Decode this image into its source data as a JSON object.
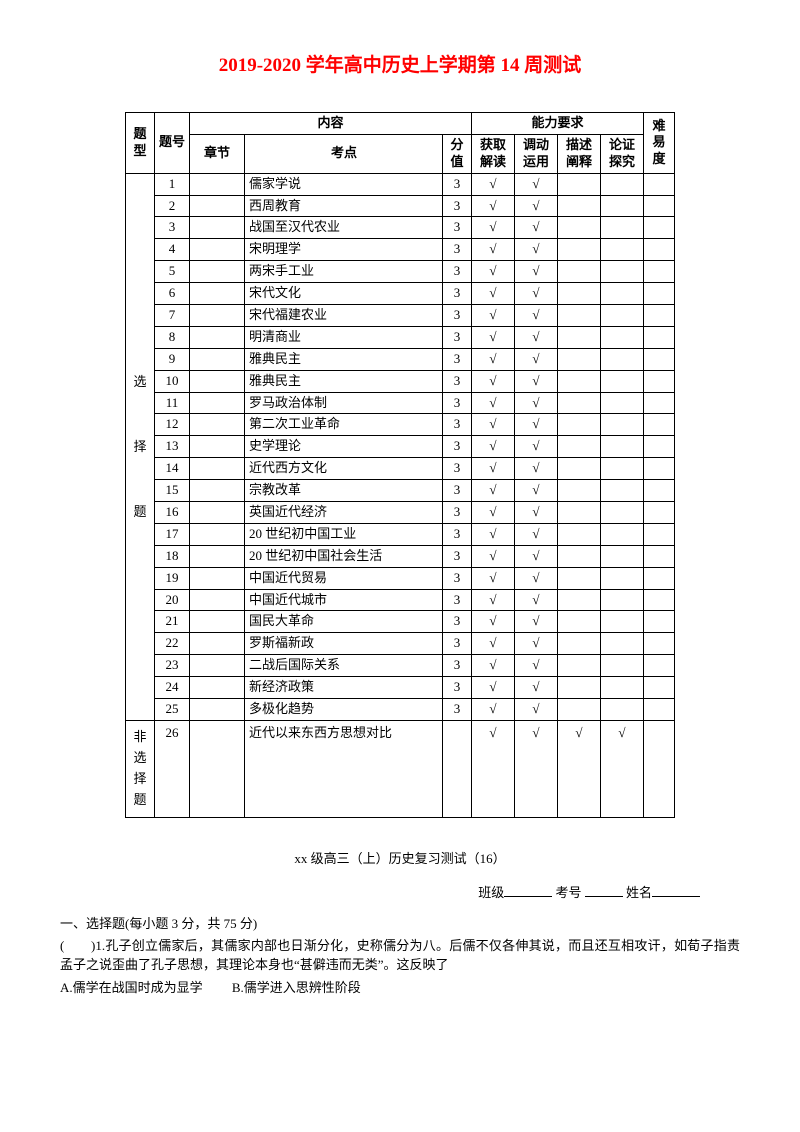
{
  "title": "2019-2020 学年高中历史上学期第 14 周测试",
  "header": {
    "type": "题型",
    "num": "题号",
    "content": "内容",
    "ability": "能力要求",
    "diff": "难易度",
    "chapter": "章节",
    "topic": "考点",
    "score": "分值",
    "a1": "获取解读",
    "a2": "调动运用",
    "a3": "描述阐释",
    "a4": "论证探究"
  },
  "type_mc": "选择题",
  "type_nonmc": "非选择题",
  "check": "√",
  "rows": [
    {
      "n": "1",
      "topic": "儒家学说",
      "s": "3",
      "c": [
        1,
        1,
        0,
        0
      ]
    },
    {
      "n": "2",
      "topic": "西周教育",
      "s": "3",
      "c": [
        1,
        1,
        0,
        0
      ]
    },
    {
      "n": "3",
      "topic": "战国至汉代农业",
      "s": "3",
      "c": [
        1,
        1,
        0,
        0
      ]
    },
    {
      "n": "4",
      "topic": "宋明理学",
      "s": "3",
      "c": [
        1,
        1,
        0,
        0
      ]
    },
    {
      "n": "5",
      "topic": "两宋手工业",
      "s": "3",
      "c": [
        1,
        1,
        0,
        0
      ]
    },
    {
      "n": "6",
      "topic": "宋代文化",
      "s": "3",
      "c": [
        1,
        1,
        0,
        0
      ]
    },
    {
      "n": "7",
      "topic": "宋代福建农业",
      "s": "3",
      "c": [
        1,
        1,
        0,
        0
      ]
    },
    {
      "n": "8",
      "topic": "明清商业",
      "s": "3",
      "c": [
        1,
        1,
        0,
        0
      ]
    },
    {
      "n": "9",
      "topic": "雅典民主",
      "s": "3",
      "c": [
        1,
        1,
        0,
        0
      ]
    },
    {
      "n": "10",
      "topic": "雅典民主",
      "s": "3",
      "c": [
        1,
        1,
        0,
        0
      ]
    },
    {
      "n": "11",
      "topic": "罗马政治体制",
      "s": "3",
      "c": [
        1,
        1,
        0,
        0
      ]
    },
    {
      "n": "12",
      "topic": "第二次工业革命",
      "s": "3",
      "c": [
        1,
        1,
        0,
        0
      ]
    },
    {
      "n": "13",
      "topic": "史学理论",
      "s": "3",
      "c": [
        1,
        1,
        0,
        0
      ]
    },
    {
      "n": "14",
      "topic": "近代西方文化",
      "s": "3",
      "c": [
        1,
        1,
        0,
        0
      ]
    },
    {
      "n": "15",
      "topic": "宗教改革",
      "s": "3",
      "c": [
        1,
        1,
        0,
        0
      ]
    },
    {
      "n": "16",
      "topic": "英国近代经济",
      "s": "3",
      "c": [
        1,
        1,
        0,
        0
      ]
    },
    {
      "n": "17",
      "topic": "20 世纪初中国工业",
      "s": "3",
      "c": [
        1,
        1,
        0,
        0
      ]
    },
    {
      "n": "18",
      "topic": "20 世纪初中国社会生活",
      "s": "3",
      "c": [
        1,
        1,
        0,
        0
      ]
    },
    {
      "n": "19",
      "topic": "中国近代贸易",
      "s": "3",
      "c": [
        1,
        1,
        0,
        0
      ]
    },
    {
      "n": "20",
      "topic": "中国近代城市",
      "s": "3",
      "c": [
        1,
        1,
        0,
        0
      ]
    },
    {
      "n": "21",
      "topic": "国民大革命",
      "s": "3",
      "c": [
        1,
        1,
        0,
        0
      ]
    },
    {
      "n": "22",
      "topic": "罗斯福新政",
      "s": "3",
      "c": [
        1,
        1,
        0,
        0
      ]
    },
    {
      "n": "23",
      "topic": "二战后国际关系",
      "s": "3",
      "c": [
        1,
        1,
        0,
        0
      ]
    },
    {
      "n": "24",
      "topic": "新经济政策",
      "s": "3",
      "c": [
        1,
        1,
        0,
        0
      ]
    },
    {
      "n": "25",
      "topic": "多极化趋势",
      "s": "3",
      "c": [
        1,
        1,
        0,
        0
      ]
    }
  ],
  "row26": {
    "n": "26",
    "topic": "近代以来东西方思想对比",
    "s": "",
    "c": [
      1,
      1,
      1,
      1
    ]
  },
  "footer": {
    "subtitle": "xx 级高三（上）历史复习测试（16）",
    "class_label": "班级",
    "examno_label": "考号",
    "name_label": "姓名",
    "section": "一、选择题(每小题 3 分，共 75 分)",
    "q_prefix": "(　　)1.",
    "q_text": "孔子创立儒家后，其儒家内部也日渐分化，史称儒分为八。后儒不仅各伸其说，而且还互相攻讦，如荀子指责孟子之说歪曲了孔子思想，其理论本身也“甚僻违而无类”。这反映了",
    "optA": "A.儒学在战国时成为显学",
    "optB": "B.儒学进入思辨性阶段"
  }
}
